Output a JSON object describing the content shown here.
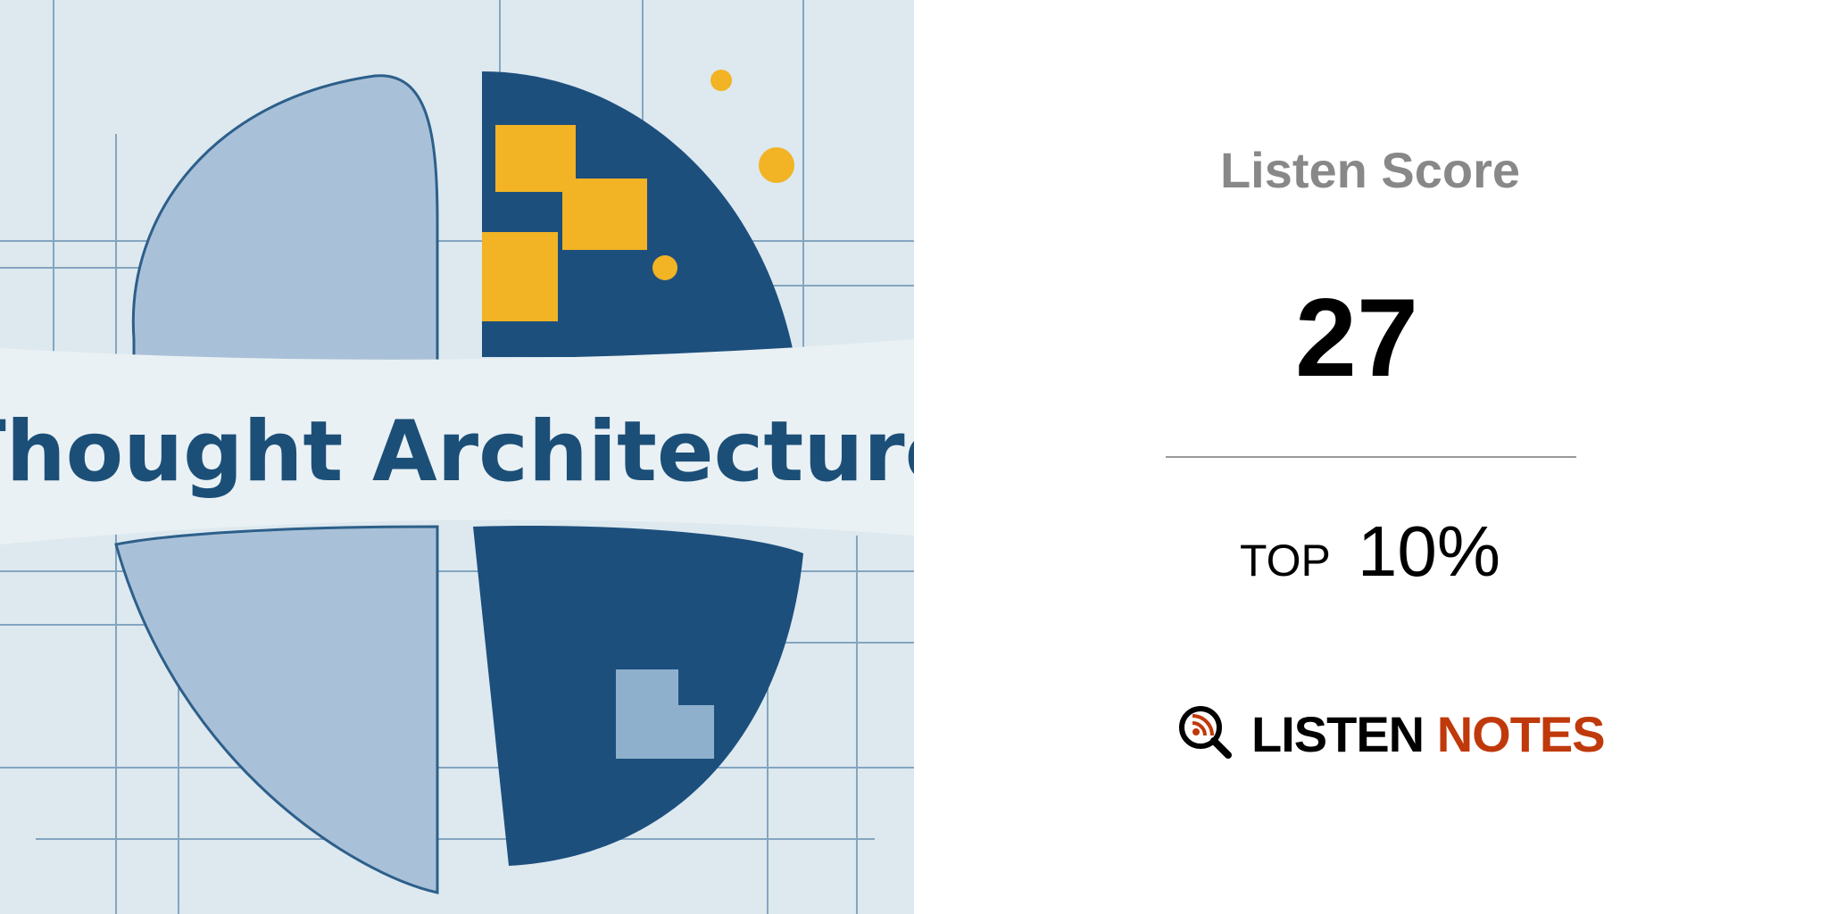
{
  "artwork": {
    "title": "Thought Architecture"
  },
  "score": {
    "label": "Listen Score",
    "value": 27,
    "rank_prefix": "TOP",
    "rank": "10%"
  },
  "brand": {
    "word1": "LISTEN",
    "word2": "NOTES"
  }
}
